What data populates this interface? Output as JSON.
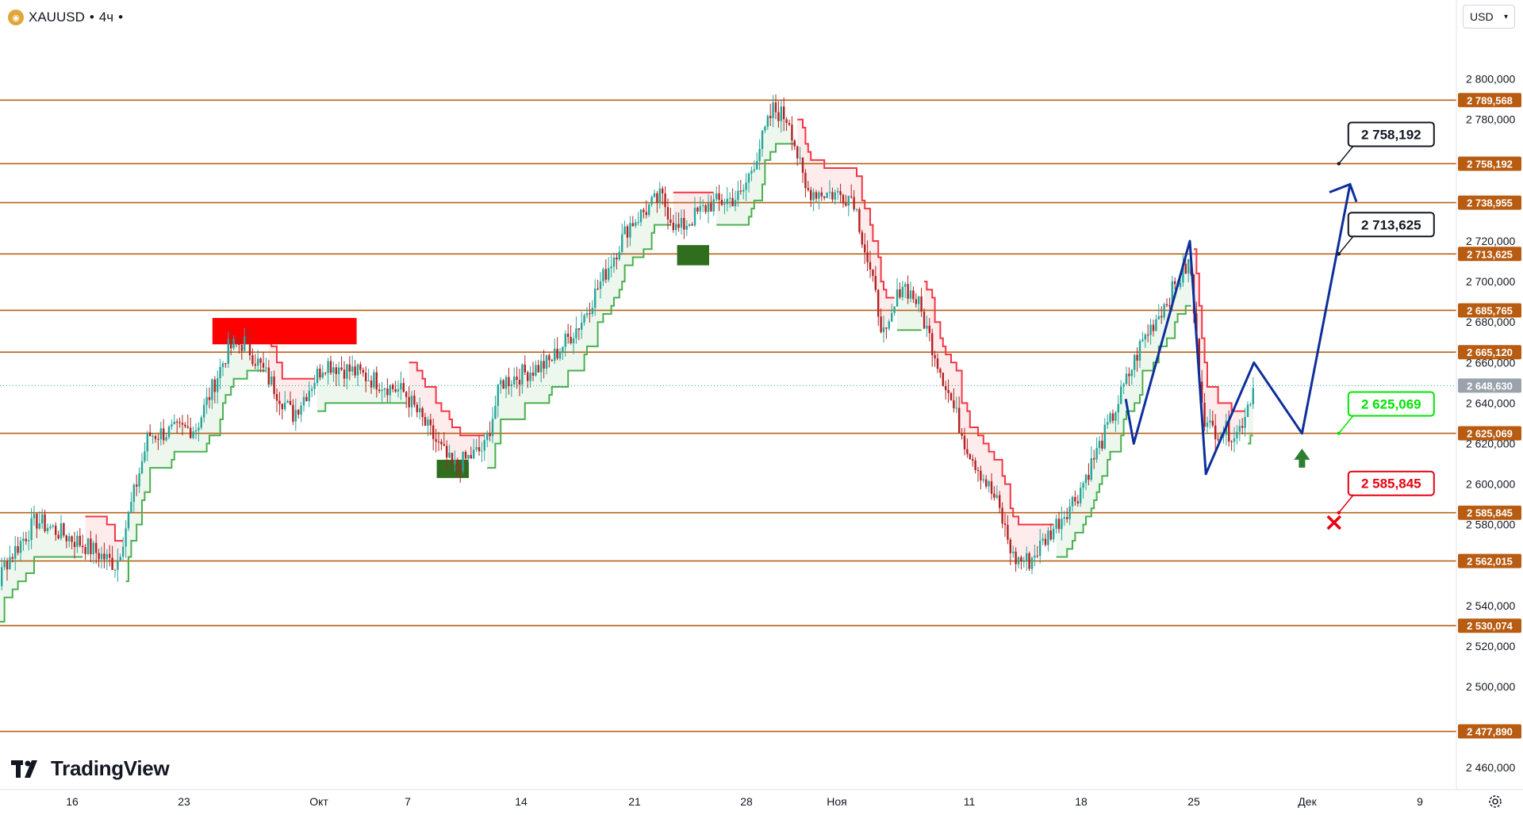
{
  "header": {
    "symbol": "XAUUSD",
    "separator": "•",
    "timeframe": "4ч",
    "status": "•",
    "icon": "gold-coin-icon"
  },
  "currency_selector": {
    "value": "USD"
  },
  "brand": {
    "name": "TradingView"
  },
  "colors": {
    "level_line": "#b8621a",
    "level_label_bg": "#b85c12",
    "current_price_bg": "#9aa3ab",
    "bull_candle": "#26a69a",
    "bear_candle": "#b22222",
    "stop_green": "#4caf50",
    "stop_red": "#f23645",
    "forecast_path": "#0d2f9c",
    "target_green": "#00e600",
    "target_red": "#e60012",
    "buy_arrow": "#2e7d32"
  },
  "chart_data": {
    "type": "candlestick",
    "title": "",
    "xlabel": "",
    "ylabel": "",
    "ylim": [
      2455,
      2830
    ],
    "y_ticks": [
      "2 800,000",
      "2 780,000",
      "2 720,000",
      "2 700,000",
      "2 680,000",
      "2 660,000",
      "2 640,000",
      "2 620,000",
      "2 600,000",
      "2 580,000",
      "2 540,000",
      "2 520,000",
      "2 500,000",
      "2 460,000"
    ],
    "y_tick_values": [
      2800,
      2780,
      2720,
      2700,
      2680,
      2660,
      2640,
      2620,
      2600,
      2580,
      2540,
      2520,
      2500,
      2460
    ],
    "x_ticks": [
      "16",
      "23",
      "Окт",
      "7",
      "14",
      "21",
      "28",
      "Ноя",
      "11",
      "18",
      "25",
      "Дек",
      "9"
    ],
    "levels": [
      {
        "label": "2 789,568",
        "value": 2789.568
      },
      {
        "label": "2 758,192",
        "value": 2758.192
      },
      {
        "label": "2 738,955",
        "value": 2738.955
      },
      {
        "label": "2 713,625",
        "value": 2713.625
      },
      {
        "label": "2 685,765",
        "value": 2685.765
      },
      {
        "label": "2 665,120",
        "value": 2665.12
      },
      {
        "label": "2 625,069",
        "value": 2625.069
      },
      {
        "label": "2 585,845",
        "value": 2585.845
      },
      {
        "label": "2 562,015",
        "value": 2562.015
      },
      {
        "label": "2 530,074",
        "value": 2530.074
      },
      {
        "label": "2 477,890",
        "value": 2477.89
      }
    ],
    "current_price": {
      "label": "2 648,630",
      "value": 2648.63
    },
    "targets": [
      {
        "label": "2 758,192",
        "value": 2758.192,
        "kind": "target"
      },
      {
        "label": "2 713,625",
        "value": 2713.625,
        "kind": "target"
      },
      {
        "label": "2 625,069",
        "value": 2625.069,
        "kind": "entry"
      },
      {
        "label": "2 585,845",
        "value": 2585.845,
        "kind": "stop"
      }
    ],
    "anchors": [
      {
        "x": "Sep 10",
        "y": 2508
      },
      {
        "x": "Sep 12",
        "y": 2560
      },
      {
        "x": "Sep 14",
        "y": 2582
      },
      {
        "x": "Sep 17",
        "y": 2570
      },
      {
        "x": "Sep 19",
        "y": 2560
      },
      {
        "x": "Sep 21",
        "y": 2624
      },
      {
        "x": "Sep 24",
        "y": 2628
      },
      {
        "x": "Sep 26",
        "y": 2667
      },
      {
        "x": "Sep 27",
        "y": 2670
      },
      {
        "x": "Sep 30",
        "y": 2634
      },
      {
        "x": "Oct 2",
        "y": 2660
      },
      {
        "x": "Oct 4",
        "y": 2655
      },
      {
        "x": "Oct 7",
        "y": 2645
      },
      {
        "x": "Oct 10",
        "y": 2608
      },
      {
        "x": "Oct 12",
        "y": 2618
      },
      {
        "x": "Oct 13",
        "y": 2650
      },
      {
        "x": "Oct 16",
        "y": 2660
      },
      {
        "x": "Oct 18",
        "y": 2680
      },
      {
        "x": "Oct 21",
        "y": 2728
      },
      {
        "x": "Oct 23",
        "y": 2742
      },
      {
        "x": "Oct 24",
        "y": 2725
      },
      {
        "x": "Oct 26",
        "y": 2738
      },
      {
        "x": "Oct 28",
        "y": 2742
      },
      {
        "x": "Oct 30",
        "y": 2785
      },
      {
        "x": "Oct 31",
        "y": 2780
      },
      {
        "x": "Nov 1",
        "y": 2745
      },
      {
        "x": "Nov 4",
        "y": 2742
      },
      {
        "x": "Nov 6",
        "y": 2670
      },
      {
        "x": "Nov 7",
        "y": 2700
      },
      {
        "x": "Nov 8",
        "y": 2690
      },
      {
        "x": "Nov 11",
        "y": 2620
      },
      {
        "x": "Nov 13",
        "y": 2590
      },
      {
        "x": "Nov 14",
        "y": 2563
      },
      {
        "x": "Nov 15",
        "y": 2562
      },
      {
        "x": "Nov 18",
        "y": 2595
      },
      {
        "x": "Nov 20",
        "y": 2630
      },
      {
        "x": "Nov 22",
        "y": 2670
      },
      {
        "x": "Nov 25",
        "y": 2710
      },
      {
        "x": "Nov 25 PM",
        "y": 2660
      },
      {
        "x": "Nov 26",
        "y": 2628
      },
      {
        "x": "Nov 28",
        "y": 2625
      },
      {
        "x": "Nov 29",
        "y": 2648.63
      }
    ],
    "forecast_path": [
      {
        "x": "Nov 29",
        "y": 2665
      },
      {
        "x": "Dec 2",
        "y": 2625
      },
      {
        "x": "Dec 5",
        "y": 2748
      }
    ],
    "grid": false,
    "legend": "none"
  }
}
